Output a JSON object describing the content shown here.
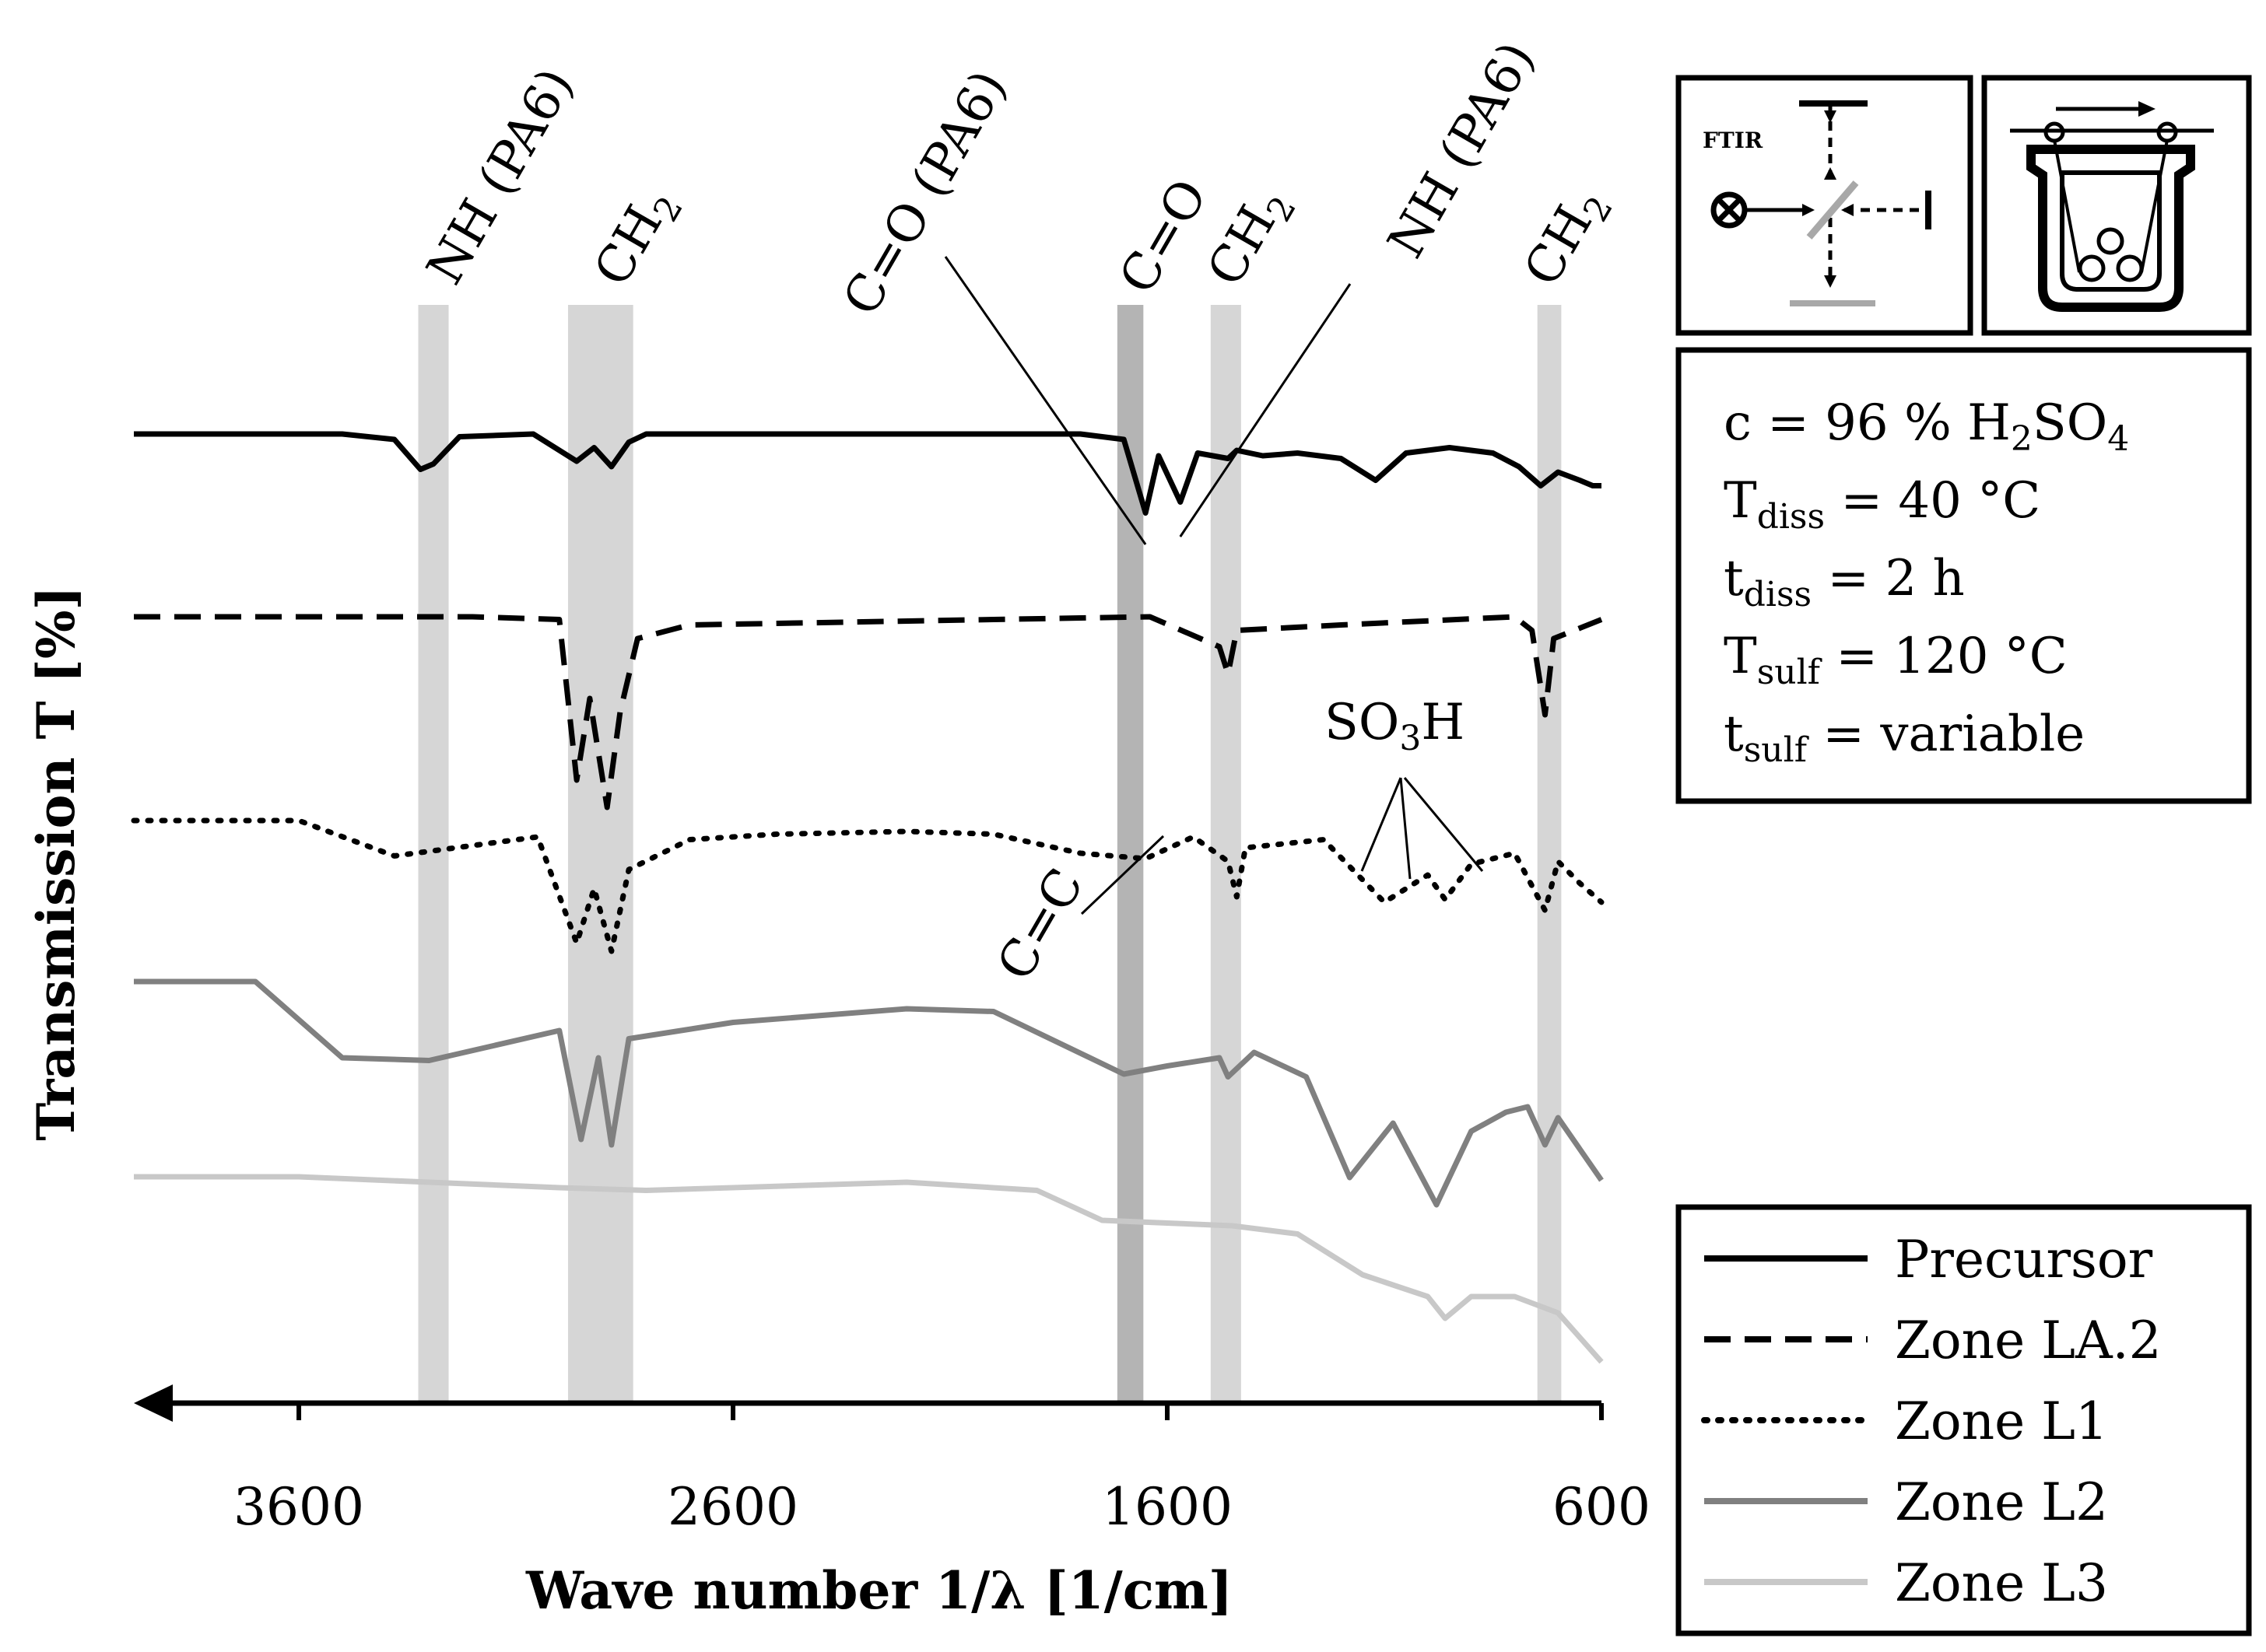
{
  "chart_data": {
    "type": "line",
    "title": "",
    "xlabel": "Wave number 1/λ [1/cm]",
    "ylabel": "Transmission T [%]",
    "xlim": [
      3980,
      600
    ],
    "x_reversed": true,
    "xticks": [
      3600,
      2600,
      1600,
      600
    ],
    "xtick_labels": [
      "3600",
      "2600",
      "1600",
      "600"
    ],
    "grid": false,
    "legend_position": "bottom-right",
    "series": [
      {
        "name": "Precursor",
        "style": "solid",
        "color": "#000000",
        "y_offset": 0,
        "points": [
          [
            3980,
            0
          ],
          [
            3500,
            0
          ],
          [
            3380,
            -0.2
          ],
          [
            3320,
            -1.3
          ],
          [
            3290,
            -1.1
          ],
          [
            3230,
            -0.1
          ],
          [
            3060,
            0
          ],
          [
            2960,
            -1.0
          ],
          [
            2920,
            -0.5
          ],
          [
            2880,
            -1.2
          ],
          [
            2840,
            -0.3
          ],
          [
            2800,
            0
          ],
          [
            1800,
            0
          ],
          [
            1700,
            -0.2
          ],
          [
            1650,
            -2.9
          ],
          [
            1620,
            -0.8
          ],
          [
            1570,
            -2.5
          ],
          [
            1530,
            -0.7
          ],
          [
            1460,
            -0.9
          ],
          [
            1440,
            -0.6
          ],
          [
            1380,
            -0.8
          ],
          [
            1300,
            -0.7
          ],
          [
            1200,
            -0.9
          ],
          [
            1120,
            -1.7
          ],
          [
            1050,
            -0.7
          ],
          [
            950,
            -0.5
          ],
          [
            850,
            -0.7
          ],
          [
            790,
            -1.2
          ],
          [
            740,
            -1.9
          ],
          [
            700,
            -1.4
          ],
          [
            650,
            -1.7
          ],
          [
            620,
            -1.9
          ],
          [
            600,
            -1.9
          ]
        ]
      },
      {
        "name": "Zone LA.2",
        "style": "dashed",
        "color": "#000000",
        "y_offset": 0,
        "points": [
          [
            3980,
            0
          ],
          [
            3500,
            0
          ],
          [
            3200,
            0
          ],
          [
            3000,
            -0.1
          ],
          [
            2960,
            -6.0
          ],
          [
            2930,
            -3.0
          ],
          [
            2890,
            -7.0
          ],
          [
            2860,
            -3.5
          ],
          [
            2820,
            -0.8
          ],
          [
            2700,
            -0.3
          ],
          [
            2000,
            -0.1
          ],
          [
            1640,
            0
          ],
          [
            1480,
            -1.1
          ],
          [
            1460,
            -2.1
          ],
          [
            1440,
            -0.5
          ],
          [
            1200,
            -0.3
          ],
          [
            800,
            0
          ],
          [
            760,
            -0.5
          ],
          [
            730,
            -3.6
          ],
          [
            710,
            -0.8
          ],
          [
            600,
            -0.1
          ]
        ]
      },
      {
        "name": "Zone L1",
        "style": "dotted",
        "color": "#000000",
        "y_offset": 0,
        "points": [
          [
            3980,
            0
          ],
          [
            3600,
            0
          ],
          [
            3380,
            -1.3
          ],
          [
            3050,
            -0.6
          ],
          [
            2960,
            -4.5
          ],
          [
            2920,
            -2.5
          ],
          [
            2880,
            -4.8
          ],
          [
            2840,
            -1.8
          ],
          [
            2700,
            -0.7
          ],
          [
            2500,
            -0.5
          ],
          [
            2200,
            -0.4
          ],
          [
            2000,
            -0.5
          ],
          [
            1800,
            -1.2
          ],
          [
            1650,
            -1.4
          ],
          [
            1540,
            -0.6
          ],
          [
            1460,
            -1.5
          ],
          [
            1440,
            -2.8
          ],
          [
            1420,
            -1.0
          ],
          [
            1240,
            -0.7
          ],
          [
            1100,
            -3.0
          ],
          [
            1000,
            -2.0
          ],
          [
            960,
            -2.9
          ],
          [
            900,
            -1.6
          ],
          [
            800,
            -1.2
          ],
          [
            730,
            -3.3
          ],
          [
            700,
            -1.5
          ],
          [
            650,
            -2.3
          ],
          [
            600,
            -3.0
          ]
        ]
      },
      {
        "name": "Zone L2",
        "style": "solid",
        "color": "#808080",
        "y_offset": 0,
        "points": [
          [
            3980,
            0
          ],
          [
            3700,
            0
          ],
          [
            3500,
            -2.8
          ],
          [
            3300,
            -2.9
          ],
          [
            3000,
            -1.8
          ],
          [
            2950,
            -5.8
          ],
          [
            2910,
            -2.8
          ],
          [
            2880,
            -6.0
          ],
          [
            2840,
            -2.1
          ],
          [
            2600,
            -1.5
          ],
          [
            2200,
            -1.0
          ],
          [
            2000,
            -1.1
          ],
          [
            1700,
            -3.4
          ],
          [
            1600,
            -3.1
          ],
          [
            1480,
            -2.8
          ],
          [
            1460,
            -3.5
          ],
          [
            1400,
            -2.6
          ],
          [
            1280,
            -3.5
          ],
          [
            1180,
            -7.2
          ],
          [
            1080,
            -5.2
          ],
          [
            980,
            -8.2
          ],
          [
            900,
            -5.5
          ],
          [
            820,
            -4.8
          ],
          [
            770,
            -4.6
          ],
          [
            730,
            -6.0
          ],
          [
            700,
            -5.0
          ],
          [
            600,
            -7.3
          ]
        ]
      },
      {
        "name": "Zone L3",
        "style": "solid",
        "color": "#c8c8c8",
        "y_offset": 0,
        "points": [
          [
            3980,
            0
          ],
          [
            3600,
            0
          ],
          [
            3300,
            -0.2
          ],
          [
            3000,
            -0.4
          ],
          [
            2800,
            -0.5
          ],
          [
            2200,
            -0.2
          ],
          [
            1900,
            -0.5
          ],
          [
            1750,
            -1.6
          ],
          [
            1600,
            -1.7
          ],
          [
            1450,
            -1.8
          ],
          [
            1300,
            -2.1
          ],
          [
            1150,
            -3.6
          ],
          [
            1000,
            -4.4
          ],
          [
            960,
            -5.2
          ],
          [
            900,
            -4.4
          ],
          [
            800,
            -4.4
          ],
          [
            700,
            -5.0
          ],
          [
            600,
            -6.8
          ]
        ]
      }
    ],
    "highlight_bands": [
      {
        "label": "NH (PA6)",
        "center": 3290,
        "width": 70,
        "shade": "#d6d6d6"
      },
      {
        "label": "CH2",
        "center": 2905,
        "width": 150,
        "shade": "#d6d6d6"
      },
      {
        "label": "C=O",
        "center": 1685,
        "width": 60,
        "shade": "#b4b4b4"
      },
      {
        "label": "CH2",
        "center": 1465,
        "width": 70,
        "shade": "#d6d6d6"
      },
      {
        "label": "CH2",
        "center": 720,
        "width": 55,
        "shade": "#d6d6d6"
      }
    ],
    "annotations": [
      {
        "text": "NH (PA6)",
        "rotated": true
      },
      {
        "text": "CH",
        "sub": "2",
        "rotated": true
      },
      {
        "text": "C=O (PA6)",
        "rotated": true
      },
      {
        "text": "C=O",
        "rotated": true
      },
      {
        "text": "CH",
        "sub": "2",
        "rotated": true
      },
      {
        "text": "NH (PA6)",
        "rotated": true
      },
      {
        "text": "CH",
        "sub": "2",
        "rotated": true
      },
      {
        "text": "SO",
        "sub": "3",
        "text2": "H"
      },
      {
        "text": "C=C",
        "rotated": true
      }
    ],
    "legend": [
      "Precursor",
      "Zone LA.2",
      "Zone L1",
      "Zone L2",
      "Zone L3"
    ]
  },
  "conditions": {
    "line1": {
      "a": "c = 96 % H",
      "sub1": "2",
      "b": "SO",
      "sub2": "4"
    },
    "line2": {
      "a": "T",
      "sub": "diss",
      "b": " = 40 °C"
    },
    "line3": {
      "a": "t",
      "sub": "diss",
      "b": " = 2 h"
    },
    "line4": {
      "a": "T",
      "sub": "sulf",
      "b": " = 120 °C"
    },
    "line5": {
      "a": "t",
      "sub": "sulf",
      "b": " = variable"
    }
  },
  "icons": {
    "ftir_label": "FTIR",
    "ftir_icon": "ftir-interferometer-icon",
    "bath_icon": "dissolution-bath-icon"
  }
}
